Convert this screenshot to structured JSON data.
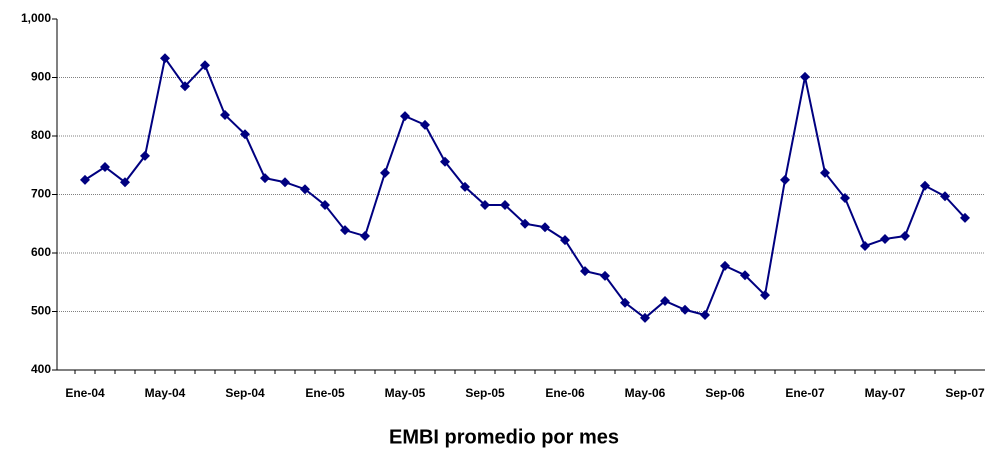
{
  "chart_data": {
    "type": "line",
    "title": "EMBI promedio por mes",
    "categories": [
      "Ene-04",
      null,
      null,
      null,
      "May-04",
      null,
      null,
      null,
      "Sep-04",
      null,
      null,
      null,
      "Ene-05",
      null,
      null,
      null,
      "May-05",
      null,
      null,
      null,
      "Sep-05",
      null,
      null,
      null,
      "Ene-06",
      null,
      null,
      null,
      "May-06",
      null,
      null,
      null,
      "Sep-06",
      null,
      null,
      null,
      "Ene-07",
      null,
      null,
      null,
      "May-07",
      null,
      null,
      null,
      "Sep-07"
    ],
    "values": [
      725,
      747,
      721,
      766,
      933,
      885,
      921,
      836,
      803,
      728,
      721,
      709,
      682,
      639,
      629,
      737,
      834,
      819,
      756,
      713,
      682,
      682,
      650,
      644,
      622,
      569,
      561,
      515,
      489,
      518,
      503,
      494,
      578,
      562,
      528,
      725,
      901,
      737,
      694,
      612,
      624,
      629,
      715,
      697,
      660
    ],
    "color": "#000080",
    "ylim": [
      400,
      1000
    ],
    "yticks": [
      400,
      500,
      600,
      700,
      800,
      900,
      {
        "value": 1000,
        "label": "1,000"
      }
    ],
    "grid": true
  }
}
